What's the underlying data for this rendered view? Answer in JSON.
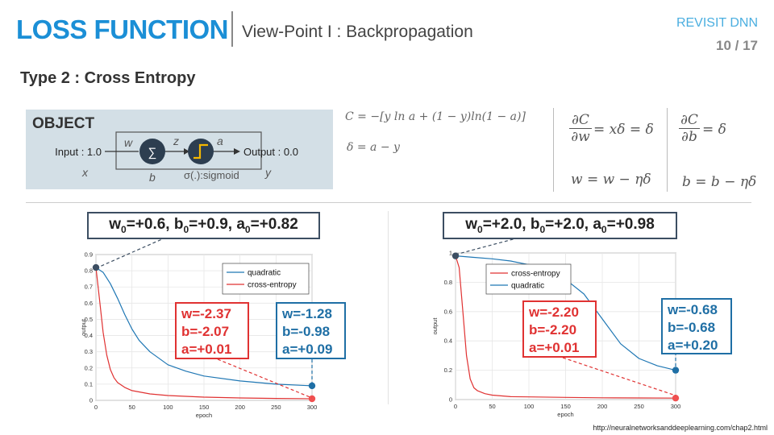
{
  "header": {
    "title": "LOSS FUNCTION",
    "subtitle": "View-Point I : Backpropagation",
    "section": "REVISIT DNN",
    "page": "10 / 17"
  },
  "heading": "Type 2 : Cross Entropy",
  "object": {
    "label": "OBJECT",
    "input": "Input : 1.0",
    "output": "Output : 0.0",
    "w": "w",
    "b": "b",
    "z": "z",
    "a": "a",
    "x": "x",
    "y": "y",
    "sum_symbol": "∑",
    "sigma": "σ(.):sigmoid"
  },
  "equations": {
    "cost": "C = −[y ln a + (1 − y)ln(1 − a)]",
    "delta": "δ = a − y",
    "dCdw_num": "∂C",
    "dCdw_den": "∂w",
    "dCdw_rhs": "= xδ = δ",
    "dCdb_num": "∂C",
    "dCdb_den": "∂b",
    "dCdb_rhs": "= δ",
    "w_update": "w = w − ηδ",
    "b_update": "b = b − ηδ"
  },
  "left_plot": {
    "callout": {
      "w": "w",
      "w_sub": "0",
      "w_val": "=+0.6, ",
      "b": "b",
      "b_sub": "0",
      "b_val": "=+0.9, ",
      "a": "a",
      "a_sub": "0",
      "a_val": "=+0.82"
    },
    "red_box": [
      "w=-2.37",
      "b=-2.07",
      "a=+0.01"
    ],
    "blue_box": [
      "w=-1.28",
      "b=-0.98",
      "a=+0.09"
    ]
  },
  "right_plot": {
    "callout": {
      "w": "w",
      "w_sub": "0",
      "w_val": "=+2.0, ",
      "b": "b",
      "b_sub": "0",
      "b_val": "=+2.0, ",
      "a": "a",
      "a_sub": "0",
      "a_val": "=+0.98"
    },
    "red_box": [
      "w=-2.20",
      "b=-2.20",
      "a=+0.01"
    ],
    "blue_box": [
      "w=-0.68",
      "b=-0.68",
      "a=+0.20"
    ]
  },
  "source": "http://neuralnetworksanddeeplearning.com/chap2.html",
  "colors": {
    "quadratic": "#1f77b4",
    "cross_entropy": "#e03232",
    "title": "#1b8fd6"
  },
  "chart_data": [
    {
      "type": "line",
      "xlabel": "epoch",
      "ylabel": "output",
      "xlim": [
        0,
        300
      ],
      "ylim": [
        0,
        0.9
      ],
      "xticks": [
        0,
        50,
        100,
        150,
        200,
        250,
        300
      ],
      "yticks": [
        0,
        0.1,
        0.2,
        0.3,
        0.4,
        0.5,
        0.6,
        0.7,
        0.8,
        0.9
      ],
      "ytick_labels": [
        "0",
        "0.1",
        "0.2",
        "0.3",
        "0.4",
        "0.5",
        "0.6",
        "0.7",
        "0.8",
        "0.9"
      ],
      "grid": true,
      "legend_position": "top-right",
      "series": [
        {
          "name": "quadratic",
          "color": "#1f77b4",
          "x": [
            0,
            10,
            20,
            30,
            40,
            50,
            60,
            75,
            100,
            125,
            150,
            200,
            250,
            300
          ],
          "y": [
            0.82,
            0.79,
            0.72,
            0.63,
            0.53,
            0.44,
            0.37,
            0.3,
            0.22,
            0.18,
            0.15,
            0.12,
            0.1,
            0.09
          ]
        },
        {
          "name": "cross-entropy",
          "color": "#e03232",
          "x": [
            0,
            5,
            10,
            15,
            20,
            25,
            30,
            40,
            50,
            75,
            100,
            150,
            200,
            250,
            300
          ],
          "y": [
            0.82,
            0.62,
            0.42,
            0.28,
            0.19,
            0.14,
            0.11,
            0.08,
            0.06,
            0.04,
            0.03,
            0.02,
            0.015,
            0.012,
            0.01
          ]
        }
      ]
    },
    {
      "type": "line",
      "xlabel": "epoch",
      "ylabel": "output",
      "xlim": [
        0,
        300
      ],
      "ylim": [
        0,
        1
      ],
      "xticks": [
        0,
        50,
        100,
        150,
        200,
        250,
        300
      ],
      "yticks": [
        0,
        0.2,
        0.4,
        0.6,
        0.8,
        1
      ],
      "ytick_labels": [
        "0",
        "0.2",
        "0.4",
        "0.6",
        "0.8",
        "1"
      ],
      "grid": true,
      "legend_position": "top-left",
      "series": [
        {
          "name": "cross-entropy",
          "color": "#e03232",
          "x": [
            0,
            5,
            10,
            15,
            20,
            25,
            30,
            40,
            50,
            75,
            100,
            150,
            200,
            250,
            300
          ],
          "y": [
            0.98,
            0.9,
            0.6,
            0.3,
            0.14,
            0.08,
            0.06,
            0.04,
            0.03,
            0.02,
            0.018,
            0.015,
            0.012,
            0.011,
            0.01
          ]
        },
        {
          "name": "quadratic",
          "color": "#1f77b4",
          "x": [
            0,
            25,
            50,
            75,
            100,
            125,
            150,
            175,
            200,
            225,
            250,
            275,
            300
          ],
          "y": [
            0.98,
            0.97,
            0.96,
            0.945,
            0.92,
            0.88,
            0.82,
            0.72,
            0.55,
            0.38,
            0.28,
            0.23,
            0.2
          ]
        }
      ]
    }
  ]
}
